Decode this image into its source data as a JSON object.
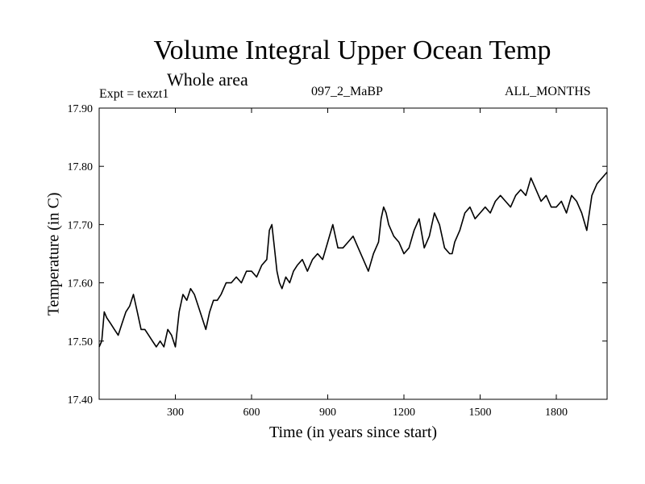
{
  "chart_data": {
    "type": "line",
    "title": "Volume Integral Upper Ocean Temp",
    "subtitle": "Whole area",
    "annotations": {
      "left": "Expt = texzt1",
      "center": "097_2_MaBP",
      "right": "ALL_MONTHS"
    },
    "xlabel": "Time (in years since start)",
    "ylabel": "Temperature (in C)",
    "xlim": [
      0,
      2000
    ],
    "ylim": [
      17.4,
      17.9
    ],
    "xticks": [
      300,
      600,
      900,
      1200,
      1500,
      1800
    ],
    "xtick_labels": [
      "300",
      "600",
      "900",
      "1200",
      "1500",
      "1800"
    ],
    "yticks": [
      17.4,
      17.5,
      17.6,
      17.7,
      17.8,
      17.9
    ],
    "ytick_labels": [
      "17.40",
      "17.50",
      "17.60",
      "17.70",
      "17.80",
      "17.90"
    ],
    "grid": false,
    "series": [
      {
        "name": "Volume Integral Upper Ocean Temp",
        "color": "#000000",
        "x": [
          0,
          10,
          20,
          30,
          45,
          60,
          75,
          90,
          105,
          120,
          135,
          150,
          165,
          180,
          195,
          210,
          225,
          240,
          255,
          270,
          285,
          300,
          315,
          330,
          345,
          360,
          375,
          390,
          405,
          420,
          435,
          450,
          465,
          480,
          500,
          520,
          540,
          560,
          580,
          600,
          620,
          640,
          660,
          670,
          680,
          690,
          700,
          710,
          720,
          735,
          750,
          765,
          780,
          800,
          820,
          840,
          860,
          880,
          900,
          920,
          940,
          960,
          980,
          1000,
          1020,
          1040,
          1060,
          1080,
          1100,
          1110,
          1120,
          1130,
          1140,
          1160,
          1180,
          1200,
          1220,
          1240,
          1260,
          1280,
          1300,
          1320,
          1340,
          1360,
          1380,
          1390,
          1400,
          1420,
          1440,
          1460,
          1480,
          1500,
          1520,
          1540,
          1560,
          1580,
          1600,
          1620,
          1640,
          1660,
          1680,
          1700,
          1720,
          1740,
          1760,
          1780,
          1800,
          1820,
          1840,
          1860,
          1880,
          1900,
          1920,
          1940,
          1960,
          1980,
          2000
        ],
        "y": [
          17.49,
          17.5,
          17.55,
          17.54,
          17.53,
          17.52,
          17.51,
          17.53,
          17.55,
          17.56,
          17.58,
          17.55,
          17.52,
          17.52,
          17.51,
          17.5,
          17.49,
          17.5,
          17.49,
          17.52,
          17.51,
          17.49,
          17.55,
          17.58,
          17.57,
          17.59,
          17.58,
          17.56,
          17.54,
          17.52,
          17.55,
          17.57,
          17.57,
          17.58,
          17.6,
          17.6,
          17.61,
          17.6,
          17.62,
          17.62,
          17.61,
          17.63,
          17.64,
          17.69,
          17.7,
          17.66,
          17.62,
          17.6,
          17.59,
          17.61,
          17.6,
          17.62,
          17.63,
          17.64,
          17.62,
          17.64,
          17.65,
          17.64,
          17.67,
          17.7,
          17.66,
          17.66,
          17.67,
          17.68,
          17.66,
          17.64,
          17.62,
          17.65,
          17.67,
          17.71,
          17.73,
          17.72,
          17.7,
          17.68,
          17.67,
          17.65,
          17.66,
          17.69,
          17.71,
          17.66,
          17.68,
          17.72,
          17.7,
          17.66,
          17.65,
          17.65,
          17.67,
          17.69,
          17.72,
          17.73,
          17.71,
          17.72,
          17.73,
          17.72,
          17.74,
          17.75,
          17.74,
          17.73,
          17.75,
          17.76,
          17.75,
          17.78,
          17.76,
          17.74,
          17.75,
          17.73,
          17.73,
          17.74,
          17.72,
          17.75,
          17.74,
          17.72,
          17.69,
          17.75,
          17.77,
          17.78,
          17.79
        ]
      }
    ]
  }
}
